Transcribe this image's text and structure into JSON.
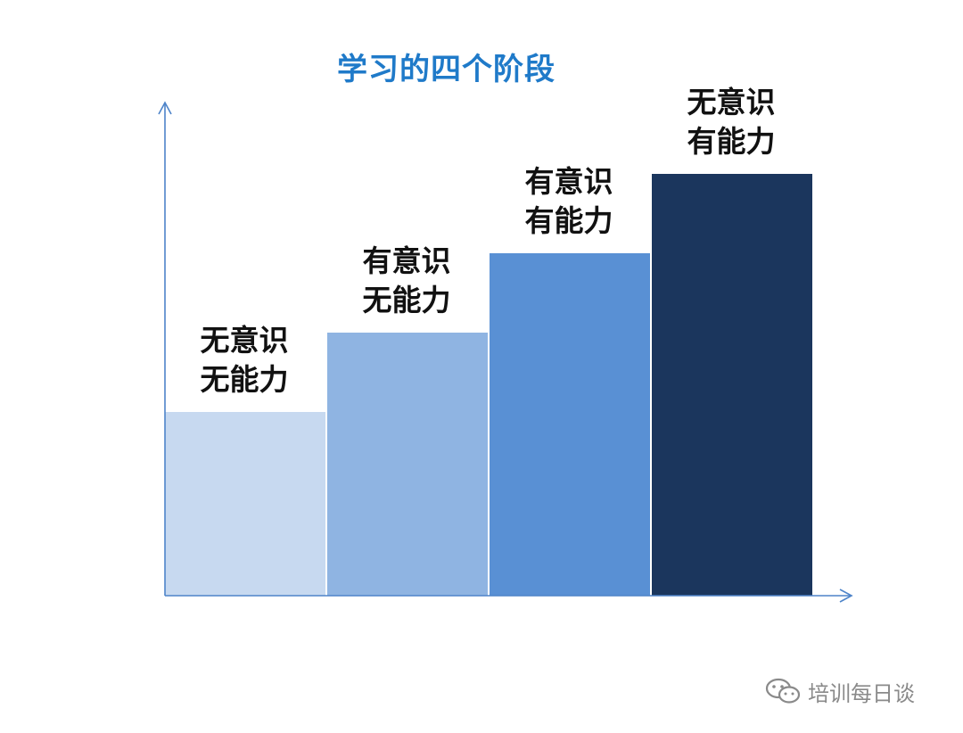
{
  "title": "学习的四个阶段",
  "chart_data": {
    "type": "bar",
    "series_colors": [
      "#c7d9f0",
      "#8fb4e2",
      "#5990d4",
      "#1b365d"
    ],
    "values": [
      1,
      2,
      3,
      4
    ],
    "labels": [
      [
        "无意识",
        "无能力"
      ],
      [
        "有意识",
        "无能力"
      ],
      [
        "有意识",
        "有能力"
      ],
      [
        "无意识",
        "有能力"
      ]
    ],
    "axis_color": "#4e84c9"
  },
  "watermark": {
    "icon": "wechat-icon",
    "text": "培训每日谈"
  }
}
